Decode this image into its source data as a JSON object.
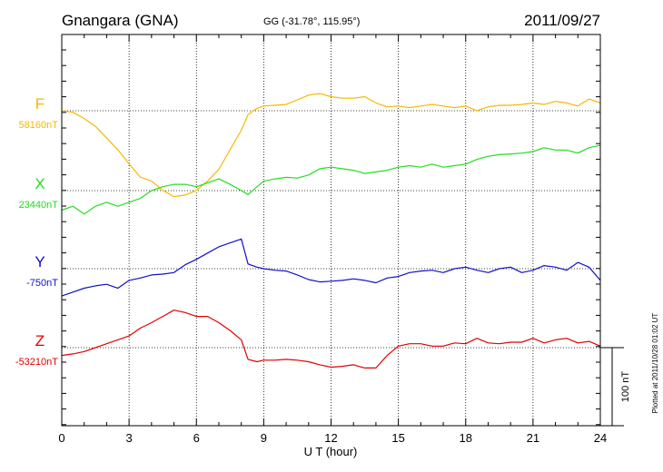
{
  "header": {
    "station": "Gnangara (GNA)",
    "coords": "GG (-31.78°, 115.95°)",
    "date": "2011/09/27"
  },
  "side_note": "Plotted at 2011/10/28 01:02 UT",
  "scale_label": "100 nT",
  "chart_data": {
    "type": "line",
    "xlabel": "U T (hour)",
    "xlim": [
      0,
      24
    ],
    "xticks": [
      "0",
      "3",
      "6",
      "9",
      "12",
      "15",
      "18",
      "21",
      "24"
    ],
    "ylabel": "",
    "scale_bar_nT": 100,
    "grid": true,
    "series": [
      {
        "name": "F",
        "baseline_label": "58160nT",
        "color": "#f5b800",
        "baseline_nT": 58160,
        "x": [
          0,
          0.5,
          1,
          1.5,
          2,
          2.5,
          3,
          3.5,
          4,
          4.5,
          5,
          5.5,
          6,
          6.5,
          7,
          7.5,
          8,
          8.3,
          8.7,
          9,
          9.5,
          10,
          10.5,
          11,
          11.5,
          12,
          12.5,
          13,
          13.5,
          14,
          14.5,
          15,
          15.5,
          16,
          16.5,
          17,
          17.5,
          18,
          18.5,
          19,
          19.5,
          20,
          20.5,
          21,
          21.5,
          22,
          22.5,
          23,
          23.5,
          24
        ],
        "y": [
          58160,
          58158,
          58150,
          58140,
          58125,
          58110,
          58092,
          58075,
          58070,
          58058,
          58050,
          58052,
          58058,
          58070,
          58085,
          58110,
          58135,
          58155,
          58163,
          58166,
          58167,
          58168,
          58174,
          58180,
          58182,
          58178,
          58176,
          58176,
          58178,
          58170,
          58165,
          58166,
          58164,
          58166,
          58168,
          58166,
          58164,
          58166,
          58160,
          58165,
          58167,
          58167,
          58168,
          58170,
          58168,
          58172,
          58170,
          58166,
          58175,
          58170
        ]
      },
      {
        "name": "X",
        "baseline_label": "23440nT",
        "color": "#22dd22",
        "baseline_nT": 23440,
        "x": [
          0,
          0.5,
          1,
          1.5,
          2,
          2.5,
          3,
          3.5,
          4,
          4.5,
          5,
          5.5,
          6,
          6.5,
          7,
          7.5,
          8,
          8.3,
          8.7,
          9,
          9.5,
          10,
          10.5,
          11,
          11.5,
          12,
          12.5,
          13,
          13.5,
          14,
          14.5,
          15,
          15.5,
          16,
          16.5,
          17,
          17.5,
          18,
          18.5,
          19,
          19.5,
          20,
          20.5,
          21,
          21.5,
          22,
          22.5,
          23,
          23.5,
          24
        ],
        "y": [
          23415,
          23420,
          23410,
          23420,
          23425,
          23420,
          23425,
          23430,
          23440,
          23445,
          23448,
          23448,
          23445,
          23450,
          23455,
          23448,
          23440,
          23435,
          23445,
          23452,
          23455,
          23457,
          23456,
          23460,
          23468,
          23470,
          23468,
          23466,
          23462,
          23464,
          23466,
          23470,
          23472,
          23470,
          23474,
          23470,
          23472,
          23474,
          23480,
          23484,
          23486,
          23487,
          23488,
          23490,
          23495,
          23492,
          23492,
          23488,
          23495,
          23498
        ]
      },
      {
        "name": "Y",
        "baseline_label": "-750nT",
        "color": "#1010cc",
        "baseline_nT": -750,
        "x": [
          0,
          0.5,
          1,
          1.5,
          2,
          2.5,
          3,
          3.5,
          4,
          4.5,
          5,
          5.5,
          6,
          6.5,
          7,
          7.5,
          8,
          8.3,
          8.7,
          9,
          9.5,
          10,
          10.5,
          11,
          11.5,
          12,
          12.5,
          13,
          13.5,
          14,
          14.5,
          15,
          15.5,
          16,
          16.5,
          17,
          17.5,
          18,
          18.5,
          19,
          19.5,
          20,
          20.5,
          21,
          21.5,
          22,
          22.5,
          23,
          23.5,
          24
        ],
        "y": [
          -785,
          -780,
          -775,
          -772,
          -770,
          -775,
          -765,
          -762,
          -758,
          -757,
          -755,
          -745,
          -738,
          -730,
          -722,
          -717,
          -712,
          -744,
          -748,
          -750,
          -752,
          -753,
          -758,
          -764,
          -767,
          -766,
          -765,
          -763,
          -765,
          -768,
          -762,
          -760,
          -755,
          -753,
          -752,
          -755,
          -750,
          -748,
          -752,
          -755,
          -750,
          -748,
          -755,
          -752,
          -746,
          -748,
          -752,
          -742,
          -748,
          -765
        ]
      },
      {
        "name": "Z",
        "baseline_label": "-53210nT",
        "color": "#e00000",
        "baseline_nT": -53210,
        "x": [
          0,
          0.5,
          1,
          1.5,
          2,
          2.5,
          3,
          3.5,
          4,
          4.5,
          5,
          5.5,
          6,
          6.5,
          7,
          7.5,
          8,
          8.3,
          8.7,
          9,
          9.5,
          10,
          10.5,
          11,
          11.5,
          12,
          12.5,
          13,
          13.5,
          14,
          14.5,
          15,
          15.5,
          16,
          16.5,
          17,
          17.5,
          18,
          18.5,
          19,
          19.5,
          20,
          20.5,
          21,
          21.5,
          22,
          22.5,
          23,
          23.5,
          24
        ],
        "y": [
          -53220,
          -53218,
          -53215,
          -53210,
          -53205,
          -53200,
          -53195,
          -53185,
          -53178,
          -53170,
          -53162,
          -53165,
          -53170,
          -53170,
          -53178,
          -53188,
          -53200,
          -53225,
          -53228,
          -53226,
          -53226,
          -53225,
          -53226,
          -53228,
          -53232,
          -53235,
          -53234,
          -53232,
          -53236,
          -53236,
          -53220,
          -53208,
          -53205,
          -53205,
          -53208,
          -53208,
          -53204,
          -53205,
          -53198,
          -53204,
          -53205,
          -53203,
          -53203,
          -53198,
          -53204,
          -53200,
          -53198,
          -53204,
          -53202,
          -53208
        ]
      }
    ]
  }
}
